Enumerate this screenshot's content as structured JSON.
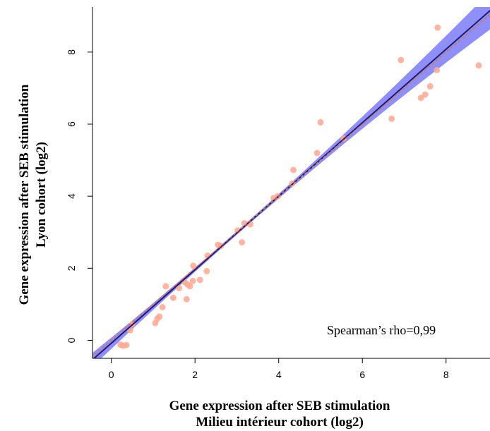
{
  "chart_data": {
    "type": "scatter",
    "xlabel_line1": "Gene expression after SEB stimulation",
    "xlabel_line2": "Milieu intérieur cohort (log2)",
    "ylabel_line1": "Gene expression after SEB stimulation",
    "ylabel_line2": "Lyon cohort (log2)",
    "annotation": "Spearman’s rho=0,99",
    "xlim": [
      -0.45,
      9.05
    ],
    "ylim": [
      -0.5,
      9.25
    ],
    "x_ticks": [
      0,
      2,
      4,
      6,
      8
    ],
    "y_ticks": [
      0,
      2,
      4,
      6,
      8
    ],
    "x_tick_labels": [
      "0",
      "2",
      "4",
      "6",
      "8"
    ],
    "y_tick_labels": [
      "0",
      "2",
      "4",
      "6",
      "8"
    ],
    "points": [
      [
        0.22,
        -0.12
      ],
      [
        0.28,
        -0.15
      ],
      [
        0.36,
        -0.13
      ],
      [
        0.45,
        0.28
      ],
      [
        0.5,
        0.45
      ],
      [
        1.05,
        0.48
      ],
      [
        1.1,
        0.6
      ],
      [
        1.15,
        0.66
      ],
      [
        1.22,
        0.92
      ],
      [
        1.3,
        1.5
      ],
      [
        1.48,
        1.18
      ],
      [
        1.62,
        1.45
      ],
      [
        1.75,
        1.62
      ],
      [
        1.8,
        1.14
      ],
      [
        1.82,
        1.55
      ],
      [
        1.88,
        1.5
      ],
      [
        1.95,
        1.65
      ],
      [
        1.96,
        2.07
      ],
      [
        2.12,
        1.68
      ],
      [
        2.28,
        1.92
      ],
      [
        2.3,
        2.35
      ],
      [
        2.55,
        2.65
      ],
      [
        2.62,
        2.62
      ],
      [
        3.02,
        3.05
      ],
      [
        3.12,
        2.72
      ],
      [
        3.18,
        3.25
      ],
      [
        3.32,
        3.22
      ],
      [
        3.88,
        3.95
      ],
      [
        3.98,
        4.0
      ],
      [
        4.32,
        4.35
      ],
      [
        4.35,
        4.73
      ],
      [
        4.92,
        5.2
      ],
      [
        5.0,
        6.05
      ],
      [
        5.55,
        5.6
      ],
      [
        6.7,
        6.15
      ],
      [
        6.92,
        7.78
      ],
      [
        7.4,
        6.73
      ],
      [
        7.5,
        6.82
      ],
      [
        7.62,
        7.05
      ],
      [
        7.78,
        7.5
      ],
      [
        7.8,
        8.68
      ],
      [
        8.78,
        7.63
      ]
    ],
    "regression": {
      "slope": 1.02,
      "intercept": -0.08
    },
    "identity_line": {
      "slope": 1.0,
      "intercept": 0.0
    },
    "point_color": "#ffa890",
    "ribbon_color": "#8f8ffa",
    "regression_color": "#1a1a7a",
    "identity_color": "#e0703a"
  }
}
